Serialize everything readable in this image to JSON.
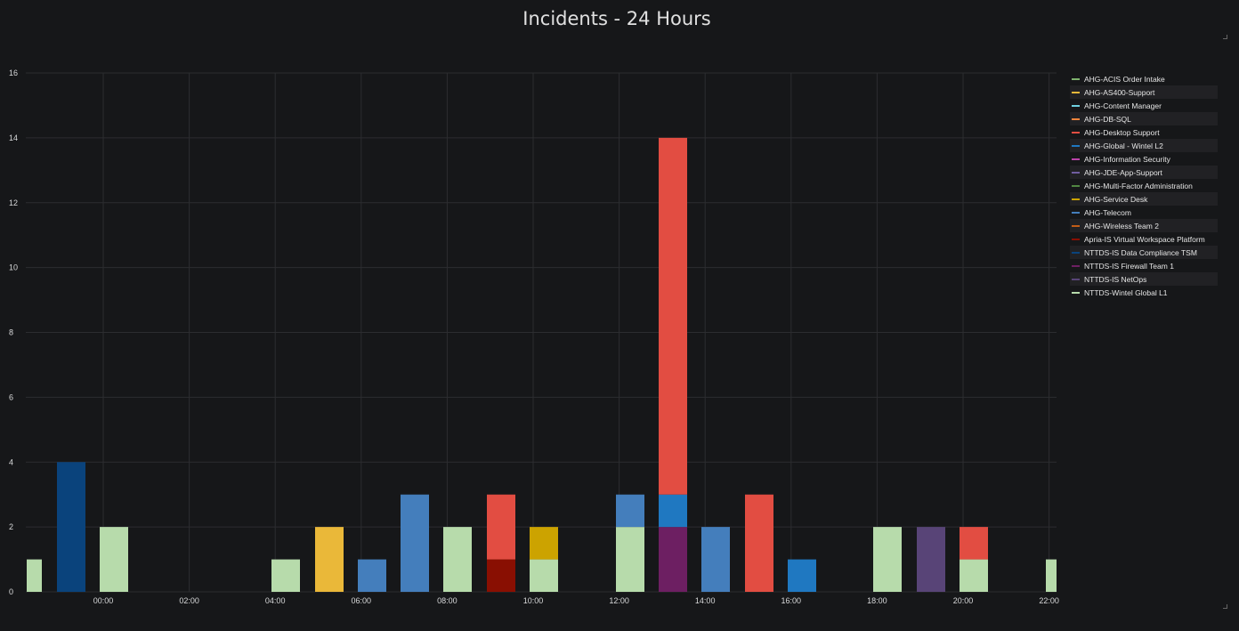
{
  "panel": {
    "title": "Incidents - 24 Hours"
  },
  "chart_data": {
    "type": "bar",
    "stacked": true,
    "title": "Incidents - 24 Hours",
    "xlabel": "",
    "ylabel": "",
    "ylim": [
      0,
      16
    ],
    "yticks": [
      "0",
      "2",
      "4",
      "6",
      "8",
      "10",
      "12",
      "14",
      "16"
    ],
    "xticks": [
      "00:00",
      "02:00",
      "04:00",
      "06:00",
      "08:00",
      "10:00",
      "12:00",
      "14:00",
      "16:00",
      "18:00",
      "20:00",
      "22:00"
    ],
    "grid": true,
    "legend_position": "right",
    "series": [
      {
        "name": "AHG-ACIS Order Intake",
        "color": "#7eb26d"
      },
      {
        "name": "AHG-AS400-Support",
        "color": "#eab839"
      },
      {
        "name": "AHG-Content Manager",
        "color": "#6ed0e0"
      },
      {
        "name": "AHG-DB-SQL",
        "color": "#ef843c"
      },
      {
        "name": "AHG-Desktop Support",
        "color": "#e24d42"
      },
      {
        "name": "AHG-Global - Wintel L2",
        "color": "#1f78c1"
      },
      {
        "name": "AHG-Information Security",
        "color": "#ba43a9"
      },
      {
        "name": "AHG-JDE-App-Support",
        "color": "#705da0"
      },
      {
        "name": "AHG-Multi-Factor Administration",
        "color": "#508642"
      },
      {
        "name": "AHG-Service Desk",
        "color": "#cca300"
      },
      {
        "name": "AHG-Telecom",
        "color": "#447ebc"
      },
      {
        "name": "AHG-Wireless Team 2",
        "color": "#c15c17"
      },
      {
        "name": "Apria-IS Virtual Workspace Platform",
        "color": "#890f02"
      },
      {
        "name": "NTTDS-IS Data Compliance TSM",
        "color": "#0a437c"
      },
      {
        "name": "NTTDS-IS Firewall Team 1",
        "color": "#6d1f62"
      },
      {
        "name": "NTTDS-IS NetOps",
        "color": "#584477"
      },
      {
        "name": "NTTDS-Wintel Global L1",
        "color": "#b7dbab"
      }
    ],
    "bars": [
      {
        "hour": -1.75,
        "stack": [
          {
            "series": "NTTDS-Wintel Global L1",
            "value": 1
          }
        ]
      },
      {
        "hour": -0.75,
        "stack": [
          {
            "series": "NTTDS-IS Data Compliance TSM",
            "value": 4
          }
        ]
      },
      {
        "hour": 0.25,
        "stack": [
          {
            "series": "NTTDS-Wintel Global L1",
            "value": 2
          }
        ]
      },
      {
        "hour": 4.25,
        "stack": [
          {
            "series": "NTTDS-Wintel Global L1",
            "value": 1
          }
        ]
      },
      {
        "hour": 5.25,
        "stack": [
          {
            "series": "AHG-AS400-Support",
            "value": 2
          }
        ]
      },
      {
        "hour": 6.25,
        "stack": [
          {
            "series": "AHG-Telecom",
            "value": 1
          }
        ]
      },
      {
        "hour": 7.25,
        "stack": [
          {
            "series": "AHG-Telecom",
            "value": 3
          }
        ]
      },
      {
        "hour": 8.25,
        "stack": [
          {
            "series": "NTTDS-Wintel Global L1",
            "value": 2
          }
        ]
      },
      {
        "hour": 9.25,
        "stack": [
          {
            "series": "Apria-IS Virtual Workspace Platform",
            "value": 1
          },
          {
            "series": "AHG-Desktop Support",
            "value": 2
          }
        ]
      },
      {
        "hour": 10.25,
        "stack": [
          {
            "series": "NTTDS-Wintel Global L1",
            "value": 1
          },
          {
            "series": "AHG-Service Desk",
            "value": 1
          }
        ]
      },
      {
        "hour": 12.25,
        "stack": [
          {
            "series": "NTTDS-Wintel Global L1",
            "value": 2
          },
          {
            "series": "AHG-Telecom",
            "value": 1
          }
        ]
      },
      {
        "hour": 13.25,
        "stack": [
          {
            "series": "NTTDS-IS Firewall Team 1",
            "value": 2
          },
          {
            "series": "AHG-Global - Wintel L2",
            "value": 1
          },
          {
            "series": "AHG-Desktop Support",
            "value": 11
          }
        ]
      },
      {
        "hour": 14.25,
        "stack": [
          {
            "series": "AHG-Telecom",
            "value": 2
          }
        ]
      },
      {
        "hour": 15.25,
        "stack": [
          {
            "series": "AHG-Desktop Support",
            "value": 3
          }
        ]
      },
      {
        "hour": 16.25,
        "stack": [
          {
            "series": "AHG-Global - Wintel L2",
            "value": 1
          }
        ]
      },
      {
        "hour": 18.25,
        "stack": [
          {
            "series": "NTTDS-Wintel Global L1",
            "value": 2
          }
        ]
      },
      {
        "hour": 19.25,
        "stack": [
          {
            "series": "NTTDS-IS NetOps",
            "value": 2
          }
        ]
      },
      {
        "hour": 20.25,
        "stack": [
          {
            "series": "NTTDS-Wintel Global L1",
            "value": 1
          },
          {
            "series": "AHG-Desktop Support",
            "value": 1
          }
        ]
      },
      {
        "hour": 22.25,
        "stack": [
          {
            "series": "NTTDS-Wintel Global L1",
            "value": 1
          }
        ]
      }
    ]
  }
}
